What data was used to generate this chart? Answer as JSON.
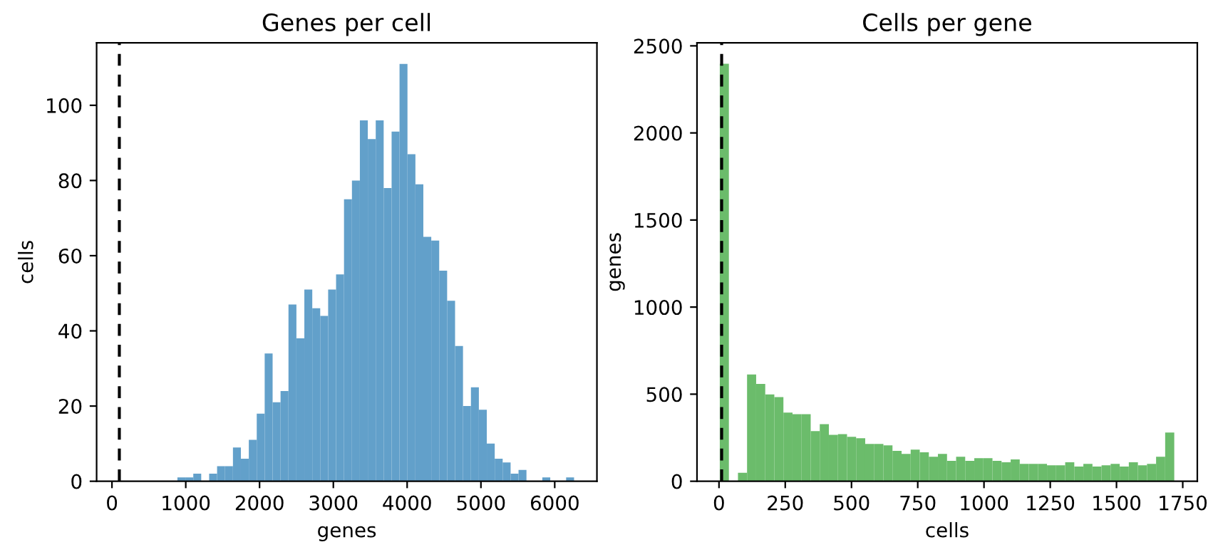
{
  "chart_data": [
    {
      "type": "histogram",
      "title": "Genes per cell",
      "xlabel": "genes",
      "ylabel": "cells",
      "color": "#62a0ca",
      "bins": [
        887,
        994.5,
        1102,
        1209.5,
        1317,
        1424.5,
        1532,
        1639.5,
        1747,
        1854.5,
        1962,
        2069.5,
        2177,
        2284.5,
        2392,
        2499.5,
        2607,
        2714.5,
        2822,
        2929.5,
        3037,
        3144.5,
        3252,
        3359.5,
        3467,
        3574.5,
        3682,
        3789.5,
        3897,
        4004.5,
        4112,
        4219.5,
        4327,
        4434.5,
        4542,
        4649.5,
        4757,
        4864.5,
        4972,
        5079.5,
        5187,
        5294.5,
        5402,
        5509.5,
        5617,
        5724.5,
        5832,
        5939.5,
        6047,
        6154.5,
        6262
      ],
      "values": [
        1,
        1,
        2,
        0,
        2,
        4,
        4,
        9,
        6,
        11,
        18,
        34,
        21,
        24,
        47,
        38,
        51,
        46,
        44,
        51,
        55,
        75,
        80,
        96,
        91,
        96,
        78,
        93,
        111,
        87,
        79,
        65,
        64,
        56,
        48,
        36,
        20,
        25,
        19,
        10,
        6,
        5,
        2,
        3,
        0,
        0,
        1,
        0,
        0,
        1
      ],
      "xlim": [
        -208,
        6572
      ],
      "ylim": [
        0,
        116.6
      ],
      "xticks": [
        0,
        1000,
        2000,
        3000,
        4000,
        5000,
        6000
      ],
      "yticks": [
        0,
        20,
        40,
        60,
        80,
        100
      ],
      "ref_lines": [
        {
          "axis": "x",
          "value": 100,
          "color": "#000000",
          "line_style": "dashed"
        }
      ]
    },
    {
      "type": "histogram",
      "title": "Cells per gene",
      "xlabel": "cells",
      "ylabel": "genes",
      "color": "#6bbc6b",
      "bins": [
        3,
        37.3,
        71.6,
        105.9,
        140.2,
        174.5,
        208.8,
        243.1,
        277.4,
        311.7,
        346,
        380.3,
        414.6,
        448.9,
        483.2,
        517.5,
        551.8,
        586.1,
        620.4,
        654.7,
        689,
        723.3,
        757.6,
        791.9,
        826.2,
        860.5,
        894.8,
        929.1,
        963.4,
        997.7,
        1032,
        1066.3,
        1100.6,
        1134.9,
        1169.2,
        1203.5,
        1237.8,
        1272.1,
        1306.4,
        1340.7,
        1375,
        1409.3,
        1443.6,
        1477.9,
        1512.2,
        1546.5,
        1580.8,
        1615.1,
        1649.4,
        1683.7,
        1718
      ],
      "values": [
        2397,
        0,
        49,
        613,
        559,
        499,
        483,
        394,
        385,
        385,
        288,
        328,
        266,
        271,
        255,
        247,
        214,
        214,
        206,
        174,
        157,
        182,
        166,
        141,
        157,
        117,
        141,
        117,
        133,
        133,
        117,
        109,
        125,
        100,
        100,
        100,
        92,
        92,
        109,
        84,
        100,
        84,
        92,
        100,
        84,
        109,
        92,
        100,
        141,
        280
      ],
      "xlim": [
        -83,
        1805
      ],
      "ylim": [
        0,
        2517
      ],
      "xticks": [
        0,
        250,
        500,
        750,
        1000,
        1250,
        1500,
        1750
      ],
      "yticks": [
        0,
        500,
        1000,
        1500,
        2000,
        2500
      ],
      "ref_lines": [
        {
          "axis": "x",
          "value": 10,
          "color": "#000000",
          "line_style": "dashed"
        }
      ]
    }
  ]
}
